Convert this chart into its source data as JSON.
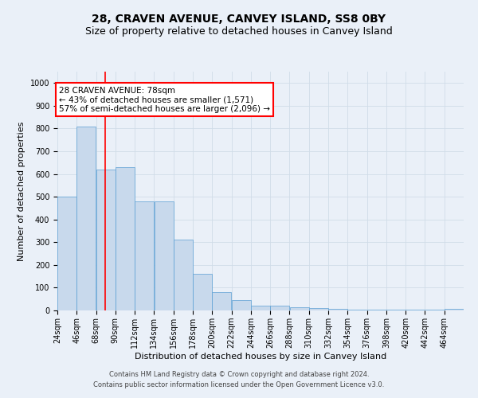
{
  "title": "28, CRAVEN AVENUE, CANVEY ISLAND, SS8 0BY",
  "subtitle": "Size of property relative to detached houses in Canvey Island",
  "xlabel": "Distribution of detached houses by size in Canvey Island",
  "ylabel": "Number of detached properties",
  "footer_line1": "Contains HM Land Registry data © Crown copyright and database right 2024.",
  "footer_line2": "Contains public sector information licensed under the Open Government Licence v3.0.",
  "annotation_title": "28 CRAVEN AVENUE: 78sqm",
  "annotation_line2": "← 43% of detached houses are smaller (1,571)",
  "annotation_line3": "57% of semi-detached houses are larger (2,096) →",
  "property_sqm": 78,
  "bin_labels": [
    "24sqm",
    "46sqm",
    "68sqm",
    "90sqm",
    "112sqm",
    "134sqm",
    "156sqm",
    "178sqm",
    "200sqm",
    "222sqm",
    "244sqm",
    "266sqm",
    "288sqm",
    "310sqm",
    "332sqm",
    "354sqm",
    "376sqm",
    "398sqm",
    "420sqm",
    "442sqm",
    "464sqm"
  ],
  "bin_edges": [
    24,
    46,
    68,
    90,
    112,
    134,
    156,
    178,
    200,
    222,
    244,
    266,
    288,
    310,
    332,
    354,
    376,
    398,
    420,
    442,
    464,
    486
  ],
  "bar_values": [
    500,
    810,
    620,
    630,
    480,
    480,
    310,
    160,
    80,
    45,
    20,
    20,
    15,
    10,
    8,
    5,
    5,
    5,
    5,
    5,
    8
  ],
  "bar_color": "#c8d9ec",
  "bar_edge_color": "#5a9fd4",
  "vline_color": "red",
  "vline_x": 78,
  "ylim": [
    0,
    1050
  ],
  "yticks": [
    0,
    100,
    200,
    300,
    400,
    500,
    600,
    700,
    800,
    900,
    1000
  ],
  "grid_color": "#d0dce8",
  "background_color": "#eaf0f8",
  "annotation_box_color": "white",
  "annotation_box_edge": "red",
  "title_fontsize": 10,
  "subtitle_fontsize": 9,
  "xlabel_fontsize": 8,
  "ylabel_fontsize": 8,
  "tick_fontsize": 7,
  "annotation_fontsize": 7.5,
  "footer_fontsize": 6
}
